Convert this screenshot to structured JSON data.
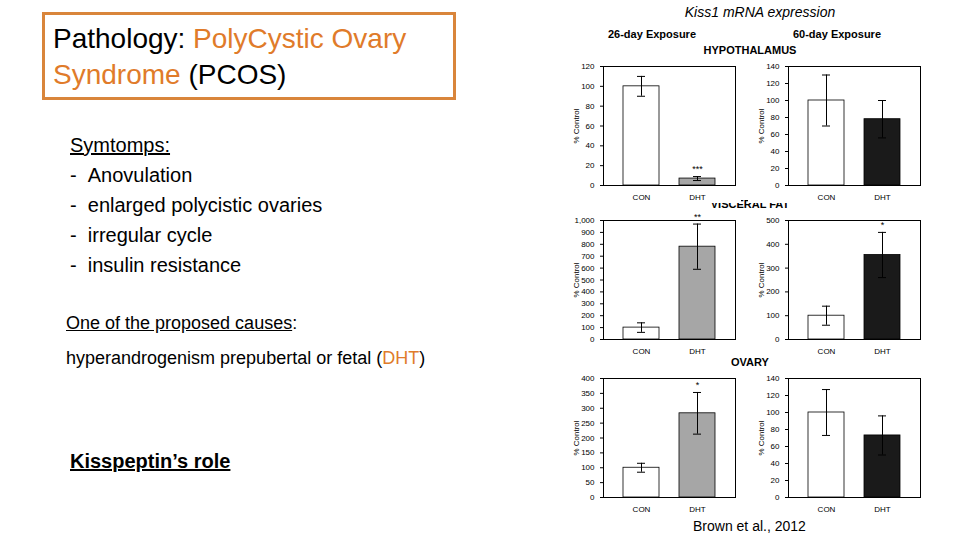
{
  "slide": {
    "title_prefix": "Pathology: ",
    "title_highlight": "PolyCystic Ovary Syndrome",
    "title_suffix": " (PCOS)",
    "symptoms_heading": "Symtomps:",
    "symptoms": [
      "Anovulation",
      "enlarged polycistic ovaries",
      "irregular cycle",
      "insulin resistance"
    ],
    "cause_heading": "One of the proposed causes",
    "cause_text_before": "hyperandrogenism prepubertal or fetal (",
    "cause_highlight": "DHT",
    "cause_text_after": ")",
    "kisspeptin_heading": "Kisspeptin’s role",
    "figure_title": "Kiss1 mRNA expression",
    "columns": [
      "26-day Exposure",
      "60-day Exposure"
    ],
    "rows": [
      "HYPOTHALAMUS",
      "VISCERAL FAT",
      "OVARY"
    ],
    "citation": "Brown et al., 2012"
  },
  "chart_data": [
    {
      "type": "bar",
      "categories": [
        "CON",
        "DHT"
      ],
      "values": [
        100,
        7
      ],
      "errors": [
        10,
        2
      ],
      "colors": [
        "#ffffff",
        "#a6a6a6"
      ],
      "ylabel": "% Control",
      "ylim": [
        0,
        120
      ],
      "yticks": [
        0,
        20,
        40,
        60,
        80,
        100,
        120
      ],
      "annotations": [
        {
          "category": "DHT",
          "text": "***"
        }
      ]
    },
    {
      "type": "bar",
      "categories": [
        "CON",
        "DHT"
      ],
      "values": [
        100,
        78
      ],
      "errors": [
        30,
        22
      ],
      "colors": [
        "#ffffff",
        "#1a1a1a"
      ],
      "ylabel": "% Control",
      "ylim": [
        0,
        140
      ],
      "yticks": [
        0,
        20,
        40,
        60,
        80,
        100,
        120,
        140
      ],
      "annotations": []
    },
    {
      "type": "bar",
      "categories": [
        "CON",
        "DHT"
      ],
      "values": [
        100,
        780
      ],
      "errors": [
        40,
        190
      ],
      "colors": [
        "#ffffff",
        "#a6a6a6"
      ],
      "ylabel": "% Control",
      "ylim": [
        0,
        1000
      ],
      "yticks": [
        0,
        100,
        200,
        300,
        400,
        500,
        600,
        700,
        800,
        900,
        1000
      ],
      "annotations": [
        {
          "category": "DHT",
          "text": "**"
        }
      ]
    },
    {
      "type": "bar",
      "categories": [
        "CON",
        "DHT"
      ],
      "values": [
        100,
        355
      ],
      "errors": [
        40,
        95
      ],
      "colors": [
        "#ffffff",
        "#1a1a1a"
      ],
      "ylabel": "% Control",
      "ylim": [
        0,
        500
      ],
      "yticks": [
        0,
        100,
        200,
        300,
        400,
        500
      ],
      "annotations": [
        {
          "category": "DHT",
          "text": "*"
        }
      ]
    },
    {
      "type": "bar",
      "categories": [
        "CON",
        "DHT"
      ],
      "values": [
        100,
        283
      ],
      "errors": [
        15,
        70
      ],
      "colors": [
        "#ffffff",
        "#a6a6a6"
      ],
      "ylabel": "% Control",
      "ylim": [
        0,
        400
      ],
      "yticks": [
        0,
        50,
        100,
        150,
        200,
        250,
        300,
        350,
        400
      ],
      "annotations": [
        {
          "category": "DHT",
          "text": "*"
        }
      ]
    },
    {
      "type": "bar",
      "categories": [
        "CON",
        "DHT"
      ],
      "values": [
        100,
        73
      ],
      "errors": [
        27,
        23
      ],
      "colors": [
        "#ffffff",
        "#1a1a1a"
      ],
      "ylabel": "% Control",
      "ylim": [
        0,
        140
      ],
      "yticks": [
        0,
        20,
        40,
        60,
        80,
        100,
        120,
        140
      ],
      "annotations": []
    }
  ]
}
